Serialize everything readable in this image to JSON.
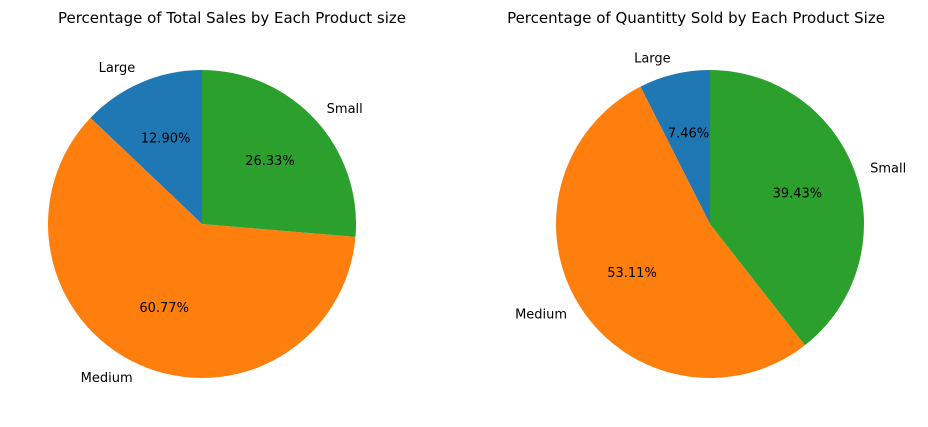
{
  "chart_data": [
    {
      "type": "pie",
      "title": "Percentage of Total Sales by Each Product size",
      "labels": [
        "Large",
        "Medium",
        "Small"
      ],
      "values": [
        12.9,
        60.77,
        26.33
      ],
      "value_labels": [
        "12.90%",
        "60.77%",
        "26.33%"
      ],
      "colors": [
        "#1f77b4",
        "#ff7f0e",
        "#2ca02c"
      ],
      "start_angle_deg": 90,
      "direction": "counterclockwise"
    },
    {
      "type": "pie",
      "title": "Percentage of Quantitty Sold by Each Product Size",
      "labels": [
        "Large",
        "Medium",
        "Small"
      ],
      "values": [
        7.46,
        53.11,
        39.43
      ],
      "value_labels": [
        "7.46%",
        "53.11%",
        "39.43%"
      ],
      "colors": [
        "#1f77b4",
        "#ff7f0e",
        "#2ca02c"
      ],
      "start_angle_deg": 90,
      "direction": "counterclockwise"
    }
  ]
}
